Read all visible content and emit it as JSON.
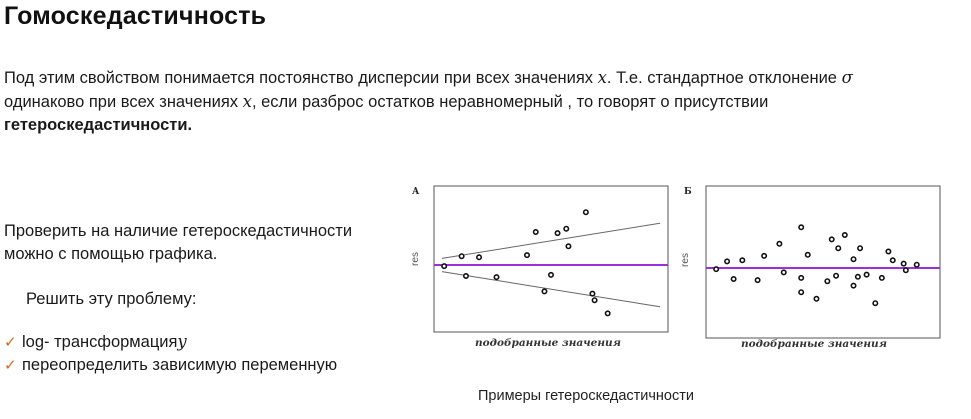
{
  "title": "Гомоскедастичность",
  "para": {
    "t1": "Под этим свойством понимается постоянство дисперсии при всех значениях ",
    "x1": "x",
    "t2": ". Т.е. стандартное отклонение ",
    "sigma": "σ",
    "t3": "одинаково при всех значениях ",
    "x2": "x",
    "t4": ", если разброс остатков неравномерный , то говорят о присутствии",
    "bold": "гетероскедастичности."
  },
  "check": {
    "line1": "Проверить на наличие гетероскедастичности",
    "line2": "можно с помощью графика."
  },
  "solve_label": "Решить эту проблему:",
  "bullets": [
    {
      "text": "log- трансформация ",
      "math": "y"
    },
    {
      "text": "переопределить зависимую переменную",
      "math": ""
    }
  ],
  "caption": "Примеры гетероскедастичности",
  "colors": {
    "midline": "#9b30d9",
    "tick": "#d2691e"
  },
  "chart_data": [
    {
      "type": "scatter",
      "panel_label": "А",
      "xlabel": "подобранные значения",
      "ylabel": "res",
      "reference_line": "y = 0",
      "bounds": [
        [
          0,
          0.3,
          10,
          1.9
        ],
        [
          0,
          -0.3,
          10,
          -1.9
        ]
      ],
      "points": [
        [
          0.1,
          -0.05
        ],
        [
          0.9,
          0.4
        ],
        [
          1.7,
          0.35
        ],
        [
          1.1,
          -0.5
        ],
        [
          2.5,
          -0.55
        ],
        [
          3.9,
          0.45
        ],
        [
          4.3,
          1.5
        ],
        [
          5.3,
          1.45
        ],
        [
          5.7,
          1.65
        ],
        [
          5.0,
          -0.45
        ],
        [
          5.8,
          0.85
        ],
        [
          4.7,
          -1.2
        ],
        [
          6.6,
          2.4
        ],
        [
          6.9,
          -1.3
        ],
        [
          7.0,
          -1.6
        ],
        [
          7.6,
          -2.2
        ]
      ]
    },
    {
      "type": "scatter",
      "panel_label": "Б",
      "xlabel": "подобранные значения",
      "ylabel": "res",
      "reference_line": "y = 0",
      "points": [
        [
          0.1,
          -0.05
        ],
        [
          0.6,
          0.3
        ],
        [
          1.3,
          0.35
        ],
        [
          0.9,
          -0.5
        ],
        [
          2.0,
          -0.55
        ],
        [
          2.3,
          0.55
        ],
        [
          3.0,
          1.1
        ],
        [
          3.2,
          -0.2
        ],
        [
          4.0,
          1.85
        ],
        [
          4.3,
          0.6
        ],
        [
          4.0,
          -0.45
        ],
        [
          4.0,
          -1.1
        ],
        [
          4.7,
          -1.4
        ],
        [
          5.4,
          1.3
        ],
        [
          5.7,
          0.9
        ],
        [
          5.2,
          -0.6
        ],
        [
          6.0,
          1.5
        ],
        [
          6.4,
          0.4
        ],
        [
          6.4,
          -0.8
        ],
        [
          6.7,
          0.9
        ],
        [
          7.0,
          -0.3
        ],
        [
          7.4,
          -1.6
        ],
        [
          7.7,
          -0.45
        ],
        [
          8.0,
          0.75
        ],
        [
          8.2,
          0.35
        ],
        [
          8.8,
          -0.1
        ],
        [
          8.7,
          0.2
        ],
        [
          6.6,
          -0.4
        ],
        [
          5.6,
          -0.35
        ],
        [
          9.3,
          0.15
        ]
      ]
    }
  ]
}
